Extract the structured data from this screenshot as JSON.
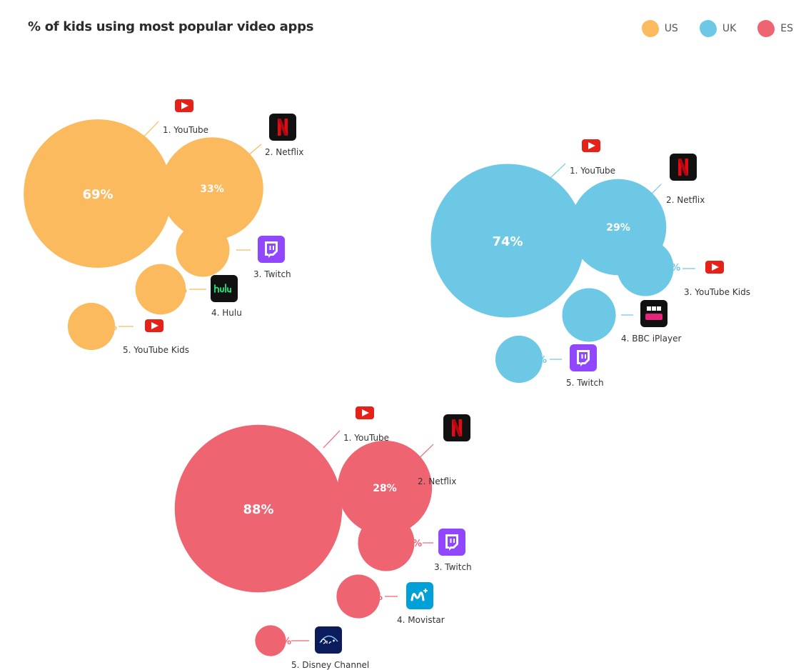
{
  "title": "% of kids using most popular video apps",
  "legend": [
    {
      "label": "US",
      "color": "#FBBA5E"
    },
    {
      "label": "UK",
      "color": "#6DC8E6"
    },
    {
      "label": "ES",
      "color": "#EE6471"
    }
  ],
  "chart_data": {
    "type": "bubble",
    "title": "% of kids using most popular video apps",
    "unit": "%",
    "groups": [
      {
        "name": "US",
        "color": "#FBBA5E",
        "apps": [
          {
            "rank": 1,
            "label": "1. YouTube",
            "value": 69,
            "icon": "youtube-icon"
          },
          {
            "rank": 2,
            "label": "2. Netflix",
            "value": 33,
            "icon": "netflix-icon"
          },
          {
            "rank": 3,
            "label": "3. Twitch",
            "value": 9,
            "icon": "twitch-icon"
          },
          {
            "rank": 4,
            "label": "4. Hulu",
            "value": 8,
            "icon": "hulu-icon"
          },
          {
            "rank": 5,
            "label": "5. YouTube Kids",
            "value": 7,
            "icon": "youtube-kids-icon"
          }
        ]
      },
      {
        "name": "UK",
        "color": "#6DC8E6",
        "apps": [
          {
            "rank": 1,
            "label": "1. YouTube",
            "value": 74,
            "icon": "youtube-icon"
          },
          {
            "rank": 2,
            "label": "2. Netflix",
            "value": 29,
            "icon": "netflix-icon"
          },
          {
            "rank": 3,
            "label": "3. YouTube Kids",
            "value": 10,
            "icon": "youtube-kids-icon"
          },
          {
            "rank": 4,
            "label": "4. BBC iPlayer",
            "value": 9,
            "icon": "bbc-iplayer-icon"
          },
          {
            "rank": 5,
            "label": "5. Twitch",
            "value": 7,
            "icon": "twitch-icon"
          }
        ]
      },
      {
        "name": "ES",
        "color": "#EE6471",
        "apps": [
          {
            "rank": 1,
            "label": "1. YouTube",
            "value": 88,
            "icon": "youtube-icon"
          },
          {
            "rank": 2,
            "label": "2. Netflix",
            "value": 28,
            "icon": "netflix-icon"
          },
          {
            "rank": 3,
            "label": "3. Twitch",
            "value": 10,
            "icon": "twitch-icon"
          },
          {
            "rank": 4,
            "label": "4. Movistar",
            "value": 6,
            "icon": "movistar-icon"
          },
          {
            "rank": 5,
            "label": "5. Disney Channel",
            "value": 3,
            "icon": "disney-plus-icon"
          }
        ]
      }
    ]
  }
}
